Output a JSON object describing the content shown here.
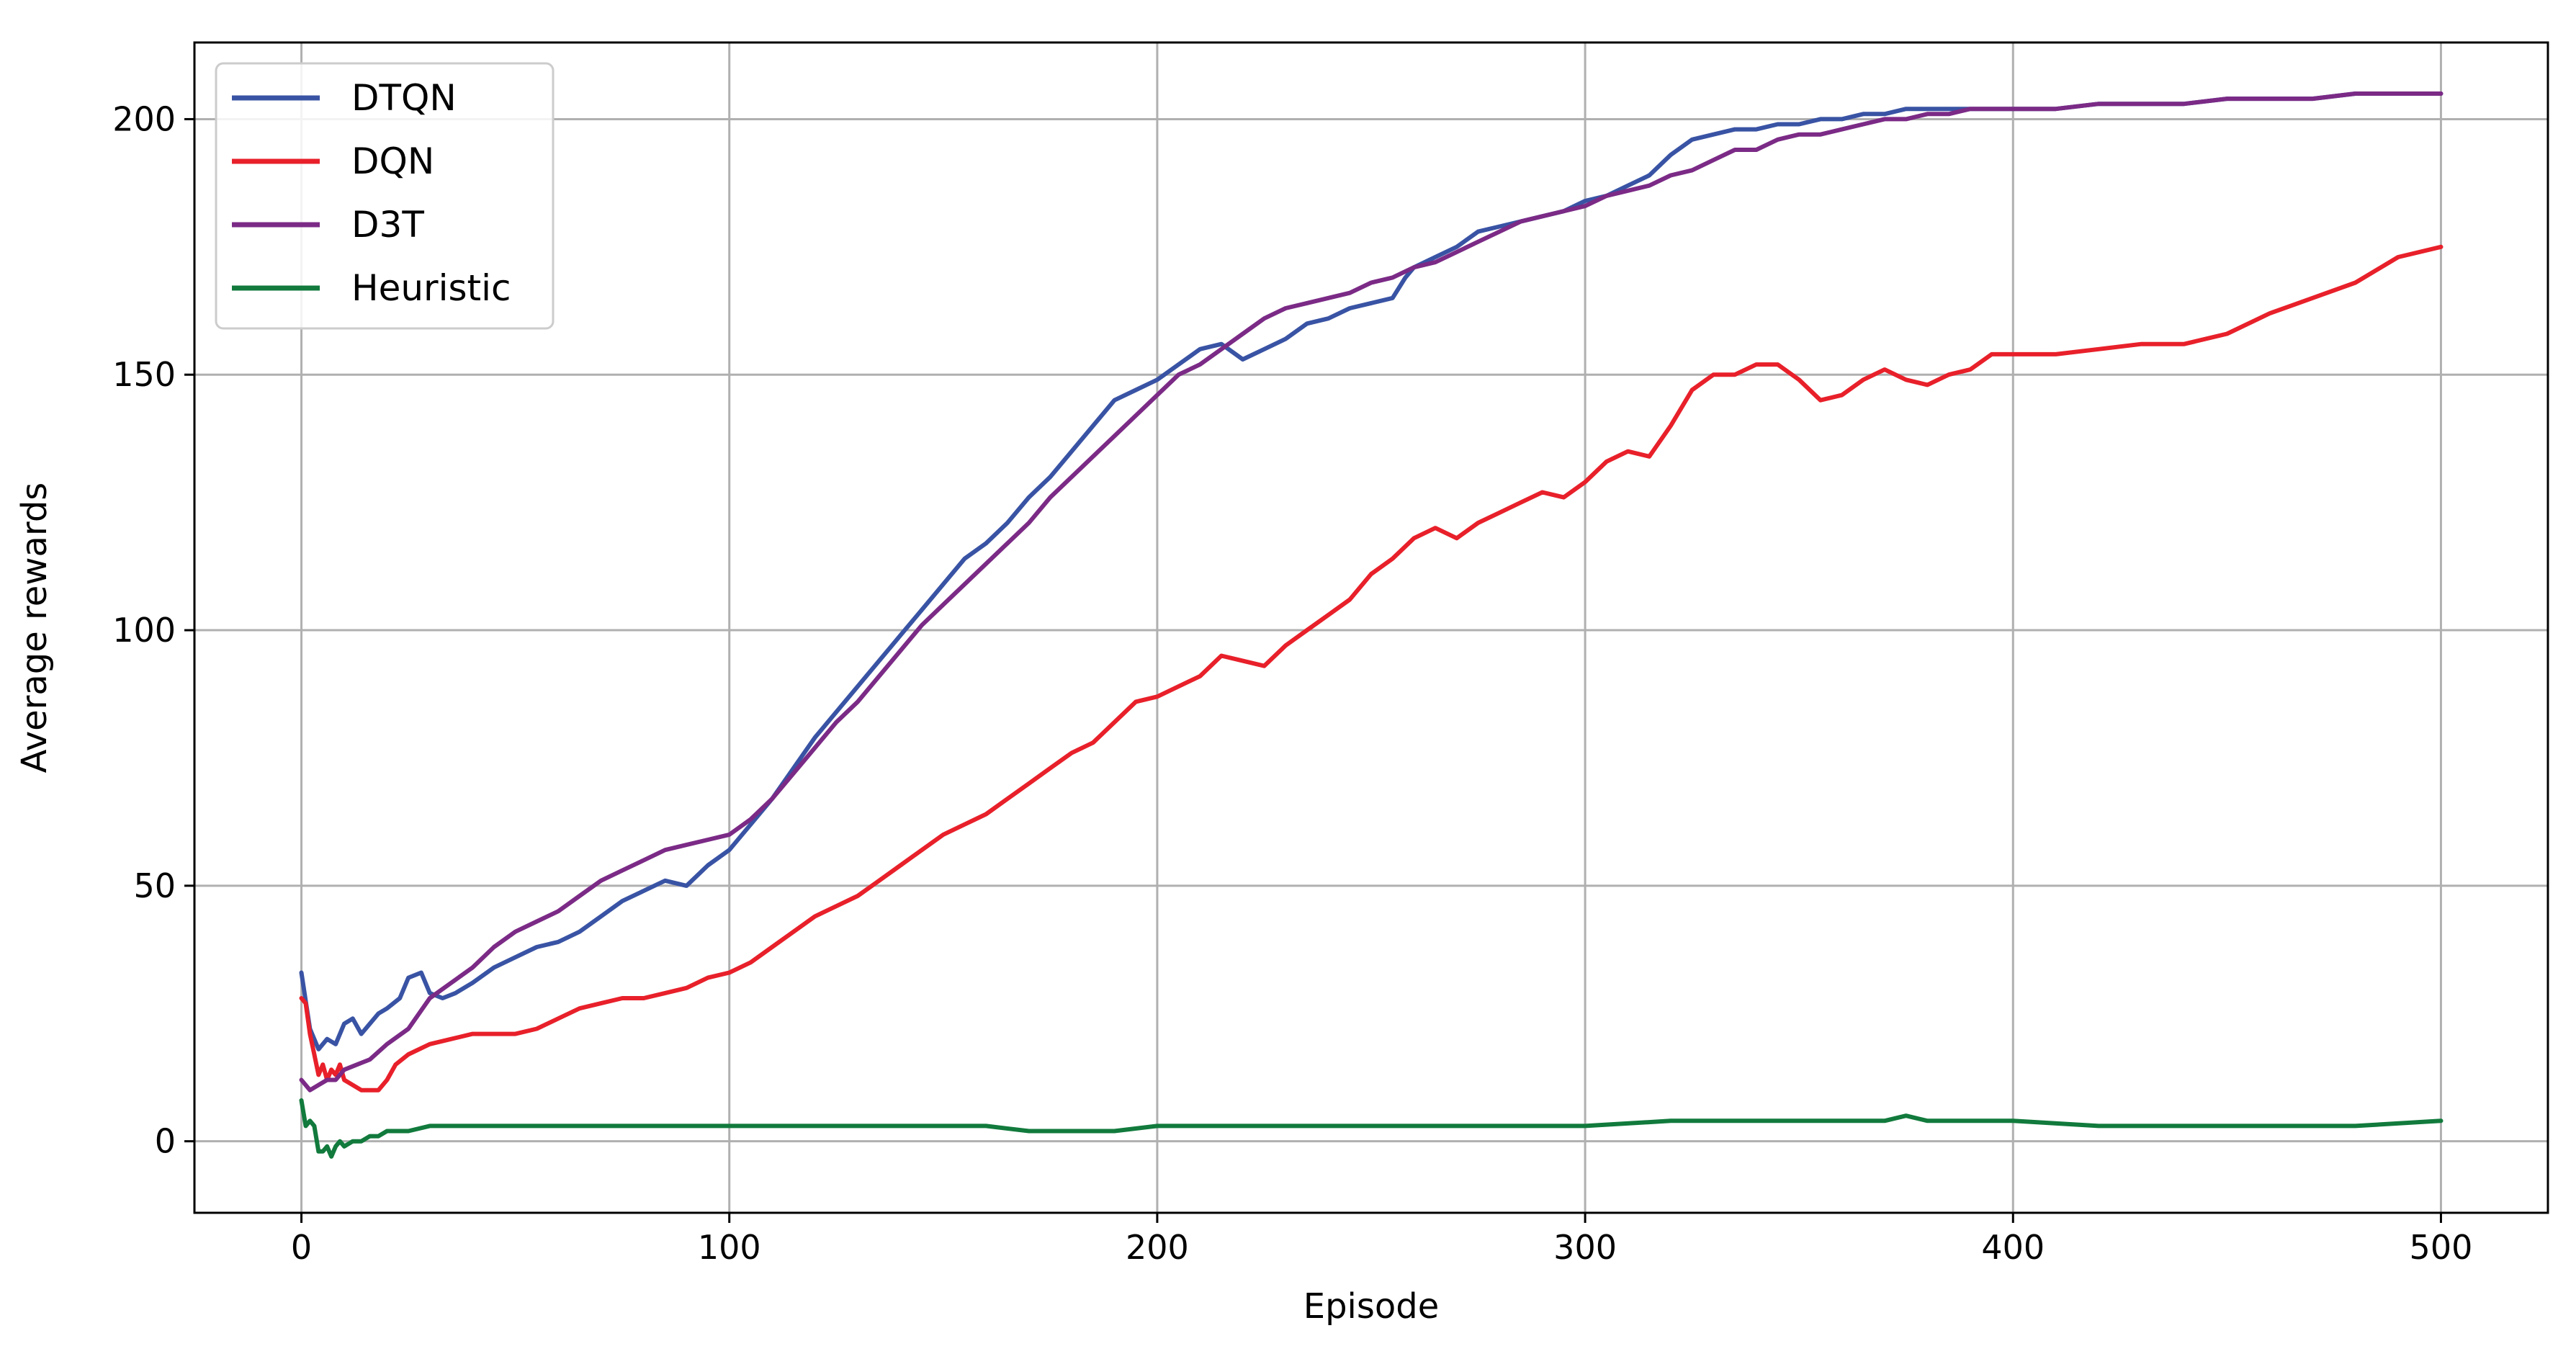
{
  "chart_data": {
    "type": "line",
    "title": "",
    "xlabel": "Episode",
    "ylabel": "Average rewards",
    "xlim": [
      -25,
      525
    ],
    "ylim": [
      -14,
      215
    ],
    "xticks": [
      0,
      100,
      200,
      300,
      400,
      500
    ],
    "yticks": [
      0,
      50,
      100,
      150,
      200
    ],
    "grid": true,
    "legend_position": "top-left",
    "series": [
      {
        "name": "DTQN",
        "color": "#3953a4",
        "x": [
          0,
          2,
          4,
          6,
          8,
          10,
          12,
          14,
          16,
          18,
          20,
          23,
          25,
          28,
          30,
          33,
          36,
          40,
          45,
          50,
          55,
          60,
          65,
          70,
          75,
          80,
          85,
          90,
          95,
          100,
          105,
          110,
          115,
          120,
          125,
          130,
          135,
          140,
          145,
          150,
          155,
          160,
          165,
          170,
          175,
          180,
          185,
          190,
          195,
          200,
          205,
          210,
          215,
          220,
          225,
          230,
          235,
          240,
          245,
          250,
          255,
          258,
          260,
          265,
          270,
          275,
          280,
          285,
          290,
          295,
          300,
          305,
          310,
          315,
          320,
          325,
          330,
          335,
          340,
          345,
          350,
          355,
          360,
          365,
          370,
          375,
          380,
          385,
          390,
          395,
          400,
          410,
          420,
          430,
          440,
          450,
          460,
          470,
          480,
          490,
          500
        ],
        "y": [
          33,
          22,
          18,
          20,
          19,
          23,
          24,
          21,
          23,
          25,
          26,
          28,
          32,
          33,
          29,
          28,
          29,
          31,
          34,
          36,
          38,
          39,
          41,
          44,
          47,
          49,
          51,
          50,
          54,
          57,
          62,
          67,
          73,
          79,
          84,
          89,
          94,
          99,
          104,
          109,
          114,
          117,
          121,
          126,
          130,
          135,
          140,
          145,
          147,
          149,
          152,
          155,
          156,
          153,
          155,
          157,
          160,
          161,
          163,
          164,
          165,
          169,
          171,
          173,
          175,
          178,
          179,
          180,
          181,
          182,
          184,
          185,
          187,
          189,
          193,
          196,
          197,
          198,
          198,
          199,
          199,
          200,
          200,
          201,
          201,
          202,
          202,
          202,
          202,
          202,
          202,
          202,
          203,
          203,
          203,
          204,
          204,
          204,
          205,
          205,
          205
        ]
      },
      {
        "name": "DQN",
        "color": "#e8202a",
        "x": [
          0,
          1,
          2,
          3,
          4,
          5,
          6,
          7,
          8,
          9,
          10,
          12,
          14,
          16,
          18,
          20,
          22,
          25,
          30,
          35,
          40,
          45,
          50,
          55,
          60,
          65,
          70,
          75,
          80,
          85,
          90,
          95,
          100,
          105,
          110,
          115,
          120,
          125,
          130,
          135,
          140,
          145,
          150,
          155,
          160,
          165,
          170,
          175,
          180,
          185,
          190,
          195,
          200,
          205,
          210,
          215,
          220,
          225,
          230,
          235,
          240,
          245,
          250,
          255,
          260,
          265,
          270,
          275,
          280,
          285,
          290,
          295,
          300,
          305,
          310,
          315,
          320,
          325,
          330,
          335,
          340,
          345,
          350,
          355,
          360,
          365,
          370,
          375,
          380,
          385,
          390,
          395,
          400,
          410,
          420,
          430,
          440,
          450,
          460,
          470,
          480,
          490,
          500
        ],
        "y": [
          28,
          27,
          21,
          17,
          13,
          15,
          12,
          14,
          13,
          15,
          12,
          11,
          10,
          10,
          10,
          12,
          15,
          17,
          19,
          20,
          21,
          21,
          21,
          22,
          24,
          26,
          27,
          28,
          28,
          29,
          30,
          32,
          33,
          35,
          38,
          41,
          44,
          46,
          48,
          51,
          54,
          57,
          60,
          62,
          64,
          67,
          70,
          73,
          76,
          78,
          82,
          86,
          87,
          89,
          91,
          95,
          94,
          93,
          97,
          100,
          103,
          106,
          111,
          114,
          118,
          120,
          118,
          121,
          123,
          125,
          127,
          126,
          129,
          133,
          135,
          134,
          140,
          147,
          150,
          150,
          152,
          152,
          149,
          145,
          146,
          149,
          151,
          149,
          148,
          150,
          151,
          154,
          154,
          154,
          155,
          156,
          156,
          158,
          162,
          165,
          168,
          173,
          175
        ]
      },
      {
        "name": "D3T",
        "color": "#7b2a86",
        "x": [
          0,
          2,
          4,
          6,
          8,
          10,
          13,
          16,
          20,
          25,
          30,
          35,
          40,
          45,
          50,
          55,
          60,
          65,
          70,
          75,
          80,
          85,
          90,
          95,
          100,
          105,
          110,
          115,
          120,
          125,
          130,
          135,
          140,
          145,
          150,
          155,
          160,
          165,
          170,
          175,
          180,
          185,
          190,
          195,
          200,
          205,
          210,
          215,
          220,
          225,
          230,
          235,
          240,
          245,
          250,
          255,
          260,
          265,
          270,
          275,
          280,
          285,
          290,
          295,
          300,
          305,
          310,
          315,
          320,
          325,
          330,
          335,
          340,
          345,
          350,
          355,
          360,
          365,
          370,
          375,
          380,
          385,
          390,
          395,
          400,
          410,
          420,
          430,
          440,
          450,
          460,
          470,
          480,
          490,
          500
        ],
        "y": [
          12,
          10,
          11,
          12,
          12,
          14,
          15,
          16,
          19,
          22,
          28,
          31,
          34,
          38,
          41,
          43,
          45,
          48,
          51,
          53,
          55,
          57,
          58,
          59,
          60,
          63,
          67,
          72,
          77,
          82,
          86,
          91,
          96,
          101,
          105,
          109,
          113,
          117,
          121,
          126,
          130,
          134,
          138,
          142,
          146,
          150,
          152,
          155,
          158,
          161,
          163,
          164,
          165,
          166,
          168,
          169,
          171,
          172,
          174,
          176,
          178,
          180,
          181,
          182,
          183,
          185,
          186,
          187,
          189,
          190,
          192,
          194,
          194,
          196,
          197,
          197,
          198,
          199,
          200,
          200,
          201,
          201,
          202,
          202,
          202,
          202,
          203,
          203,
          203,
          204,
          204,
          204,
          205,
          205,
          205
        ]
      },
      {
        "name": "Heuristic",
        "color": "#117a3c",
        "x": [
          0,
          1,
          2,
          3,
          4,
          5,
          6,
          7,
          8,
          9,
          10,
          12,
          14,
          16,
          18,
          20,
          25,
          30,
          40,
          50,
          60,
          70,
          80,
          90,
          100,
          110,
          120,
          130,
          140,
          150,
          160,
          170,
          180,
          190,
          200,
          220,
          240,
          260,
          280,
          300,
          320,
          340,
          360,
          370,
          375,
          380,
          390,
          400,
          420,
          440,
          460,
          480,
          500
        ],
        "y": [
          8,
          3,
          4,
          3,
          -2,
          -2,
          -1,
          -3,
          -1,
          0,
          -1,
          0,
          0,
          1,
          1,
          2,
          2,
          3,
          3,
          3,
          3,
          3,
          3,
          3,
          3,
          3,
          3,
          3,
          3,
          3,
          3,
          2,
          2,
          2,
          3,
          3,
          3,
          3,
          3,
          3,
          4,
          4,
          4,
          4,
          5,
          4,
          4,
          4,
          3,
          3,
          3,
          3,
          4
        ]
      }
    ]
  }
}
